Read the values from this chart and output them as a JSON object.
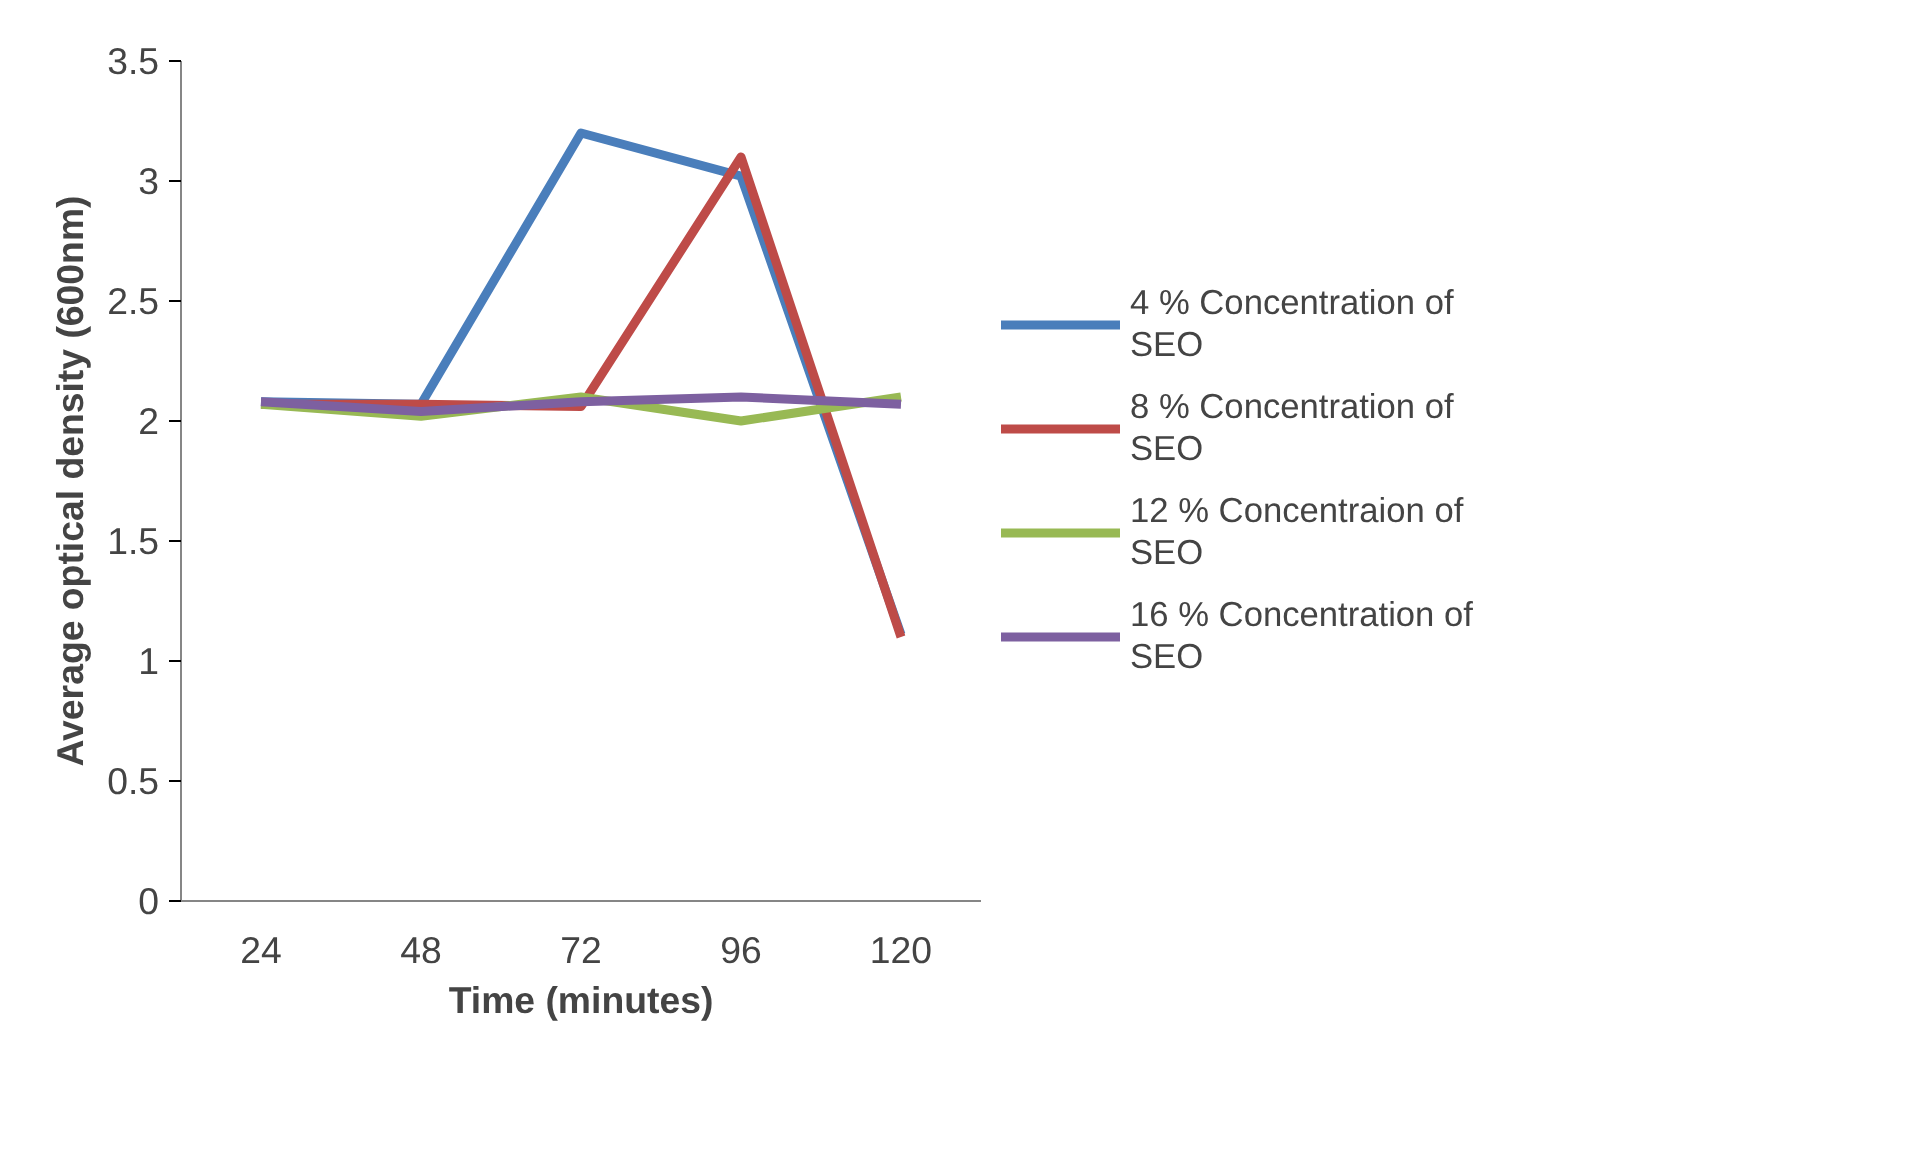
{
  "chart_data": {
    "type": "line",
    "xlabel": "Time (minutes)",
    "ylabel": "Average optical density (600nm)",
    "categories": [
      "24",
      "48",
      "72",
      "96",
      "120"
    ],
    "series": [
      {
        "name": "4 % Concentration of SEO",
        "color": "#4a7ebb",
        "values": [
          2.08,
          2.07,
          3.2,
          3.02,
          1.11
        ]
      },
      {
        "name": "8 % Concentration of SEO",
        "color": "#be4b48",
        "values": [
          2.07,
          2.07,
          2.06,
          3.1,
          1.1
        ]
      },
      {
        "name": "12 % Concentraion of SEO",
        "color": "#98b954",
        "values": [
          2.07,
          2.02,
          2.1,
          2.0,
          2.1
        ]
      },
      {
        "name": "16 % Concentration of SEO",
        "color": "#7d60a0",
        "values": [
          2.08,
          2.04,
          2.08,
          2.1,
          2.07
        ]
      }
    ],
    "ylim": [
      0,
      3.5
    ],
    "yticks": [
      0,
      0.5,
      1,
      1.5,
      2,
      2.5,
      3,
      3.5
    ],
    "grid": false,
    "legend": "right",
    "marker": "none",
    "line_style": "solid"
  }
}
